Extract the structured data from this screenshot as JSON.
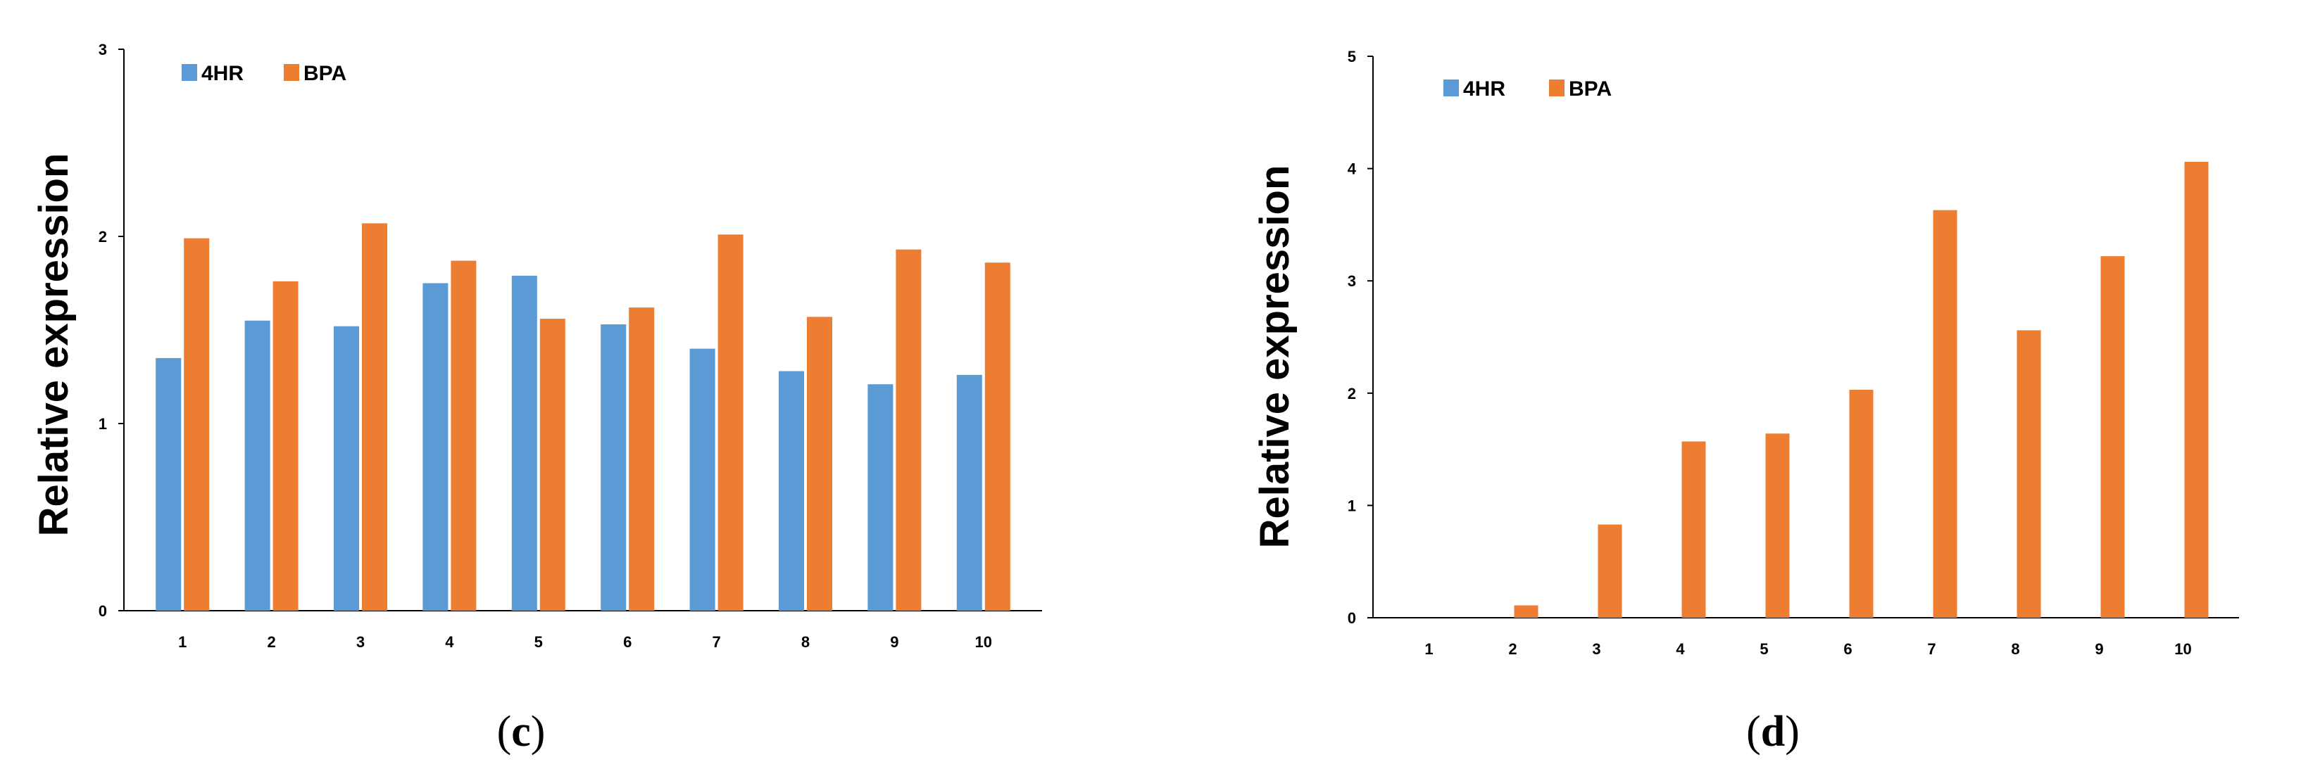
{
  "colors": {
    "4HR": "#5b9bd5",
    "BPA": "#ed7d31",
    "axis": "#000000"
  },
  "chart_data": [
    {
      "type": "bar",
      "panel_label": "(c)",
      "panel_letter": "c",
      "ylabel": "Relative expression",
      "xlabel": "",
      "ylim": [
        0,
        3
      ],
      "y_ticks": [
        "0",
        "1",
        "2",
        "3"
      ],
      "legend_position": "top-left",
      "grid": false,
      "categories": [
        "1",
        "2",
        "3",
        "4",
        "5",
        "6",
        "7",
        "8",
        "9",
        "10"
      ],
      "series": [
        {
          "name": "4HR",
          "values": [
            1.35,
            1.55,
            1.52,
            1.75,
            1.79,
            1.53,
            1.4,
            1.28,
            1.21,
            1.26
          ]
        },
        {
          "name": "BPA",
          "values": [
            1.99,
            1.76,
            2.07,
            1.87,
            1.56,
            1.62,
            2.01,
            1.57,
            1.93,
            1.86
          ]
        }
      ]
    },
    {
      "type": "bar",
      "panel_label": "(d)",
      "panel_letter": "d",
      "ylabel": "Relative expression",
      "xlabel": "",
      "ylim": [
        0,
        5
      ],
      "y_ticks": [
        "0",
        "1",
        "2",
        "3",
        "4",
        "5"
      ],
      "legend_position": "top-left",
      "grid": false,
      "categories": [
        "1",
        "2",
        "3",
        "4",
        "5",
        "6",
        "7",
        "8",
        "9",
        "10"
      ],
      "series": [
        {
          "name": "4HR",
          "values": [
            0,
            0,
            0,
            0,
            0,
            0,
            0,
            0,
            0,
            0
          ]
        },
        {
          "name": "BPA",
          "values": [
            0,
            0.11,
            0.83,
            1.57,
            1.64,
            2.03,
            3.63,
            2.56,
            3.22,
            4.06
          ]
        }
      ]
    }
  ]
}
